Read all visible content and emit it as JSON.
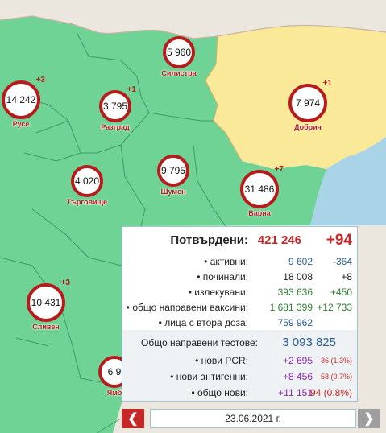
{
  "markers": [
    {
      "name": "Русе",
      "value": "14 242",
      "delta": "+3"
    },
    {
      "name": "Разград",
      "value": "3 795",
      "delta": "+1"
    },
    {
      "name": "Силистра",
      "value": "5 960",
      "delta": ""
    },
    {
      "name": "Добрич",
      "value": "7 974",
      "delta": "+1"
    },
    {
      "name": "Търговище",
      "value": "4 020",
      "delta": ""
    },
    {
      "name": "Шумен",
      "value": "9 795",
      "delta": ""
    },
    {
      "name": "Варна",
      "value": "31 486",
      "delta": "+7"
    },
    {
      "name": "Сливен",
      "value": "10 431",
      "delta": "+3"
    },
    {
      "name": "Ямб",
      "value": "6 9",
      "delta": ""
    }
  ],
  "colors": {
    "green": "#6fd395",
    "yellow": "#fbe99a",
    "water": "#a9d3e6",
    "ring": "#b71c1c"
  },
  "panel": {
    "confirmed_label": "Потвърдени:",
    "confirmed_value": "421 246",
    "confirmed_delta": "+94",
    "rows": [
      {
        "label": "• активни:",
        "value": "9 602",
        "delta": "-364"
      },
      {
        "label": "• починали:",
        "value": "18 008",
        "delta": "+8"
      },
      {
        "label": "• излекувани:",
        "value": "393 636",
        "delta": "+450"
      },
      {
        "label": "• общо направени ваксини:",
        "value": "1 681 399",
        "delta": "+12 733"
      },
      {
        "label": "• лица с втора доза:",
        "value": "759 962",
        "delta": ""
      }
    ],
    "tests_label": "Общо направени тестове:",
    "tests_value": "3 093 825",
    "test_rows": [
      {
        "label": "• нови PCR:",
        "value": "+2 695",
        "delta": "36 (1.3%)"
      },
      {
        "label": "• нови антигенни:",
        "value": "+8 456",
        "delta": "58 (0.7%)"
      },
      {
        "label": "• общо нови:",
        "value": "+11 151",
        "delta": "94 (0.8%)"
      }
    ]
  },
  "nav": {
    "date": "23.06.2021 г.",
    "prev_icon": "chevron-left-icon",
    "next_icon": "chevron-right-icon"
  }
}
